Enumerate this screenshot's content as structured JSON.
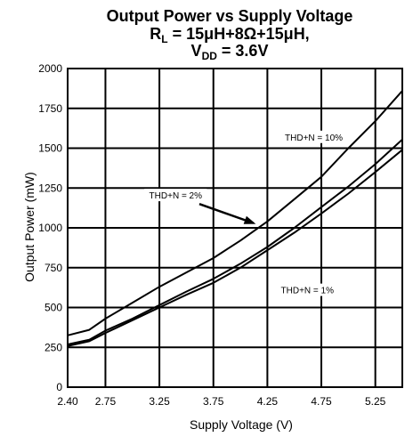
{
  "chart_data": {
    "type": "line",
    "title_line1": "Output Power vs Supply Voltage",
    "title_line2_prefix": "R",
    "title_line2_sub": "L",
    "title_line2_rest": " = 15μH+8Ω+15μH,",
    "title_line3_prefix": "V",
    "title_line3_sub": "DD",
    "title_line3_rest": " = 3.6V",
    "xlabel": "Supply Voltage (V)",
    "ylabel": "Output Power (mW)",
    "xlim": [
      2.4,
      5.5
    ],
    "ylim": [
      0,
      2000
    ],
    "xticks": [
      2.4,
      2.75,
      3.25,
      3.75,
      4.25,
      4.75,
      5.25
    ],
    "xtick_labels": [
      "2.40",
      "2.75",
      "3.25",
      "3.75",
      "4.25",
      "4.75",
      "5.25"
    ],
    "yticks": [
      0,
      250,
      500,
      750,
      1000,
      1250,
      1500,
      1750,
      2000
    ],
    "ytick_labels": [
      "0",
      "250",
      "500",
      "750",
      "1000",
      "1250",
      "1500",
      "1750",
      "2000"
    ],
    "grid": true,
    "series": [
      {
        "name": "THD+N = 10%",
        "x": [
          2.4,
          2.6,
          2.75,
          3.0,
          3.25,
          3.5,
          3.75,
          4.0,
          4.25,
          4.5,
          4.75,
          5.0,
          5.25,
          5.5
        ],
        "y": [
          325,
          360,
          430,
          530,
          630,
          720,
          810,
          920,
          1040,
          1180,
          1320,
          1500,
          1670,
          1860
        ]
      },
      {
        "name": "THD+N = 2%",
        "x": [
          2.4,
          2.6,
          2.75,
          3.0,
          3.25,
          3.5,
          3.75,
          4.0,
          4.25,
          4.5,
          4.75,
          5.0,
          5.25,
          5.5
        ],
        "y": [
          268,
          298,
          355,
          430,
          515,
          600,
          680,
          775,
          880,
          1000,
          1130,
          1260,
          1400,
          1555
        ]
      },
      {
        "name": "THD+N = 1%",
        "x": [
          2.4,
          2.6,
          2.75,
          3.0,
          3.25,
          3.5,
          3.75,
          4.0,
          4.25,
          4.5,
          4.75,
          5.0,
          5.25,
          5.5
        ],
        "y": [
          258,
          288,
          340,
          420,
          500,
          580,
          655,
          750,
          860,
          970,
          1090,
          1215,
          1350,
          1490
        ]
      }
    ],
    "annotations": [
      {
        "text": "THD+N = 10%",
        "series": 0
      },
      {
        "text": "THD+N = 2%",
        "series": 1
      },
      {
        "text": "THD+N = 1%",
        "series": 2
      }
    ]
  }
}
